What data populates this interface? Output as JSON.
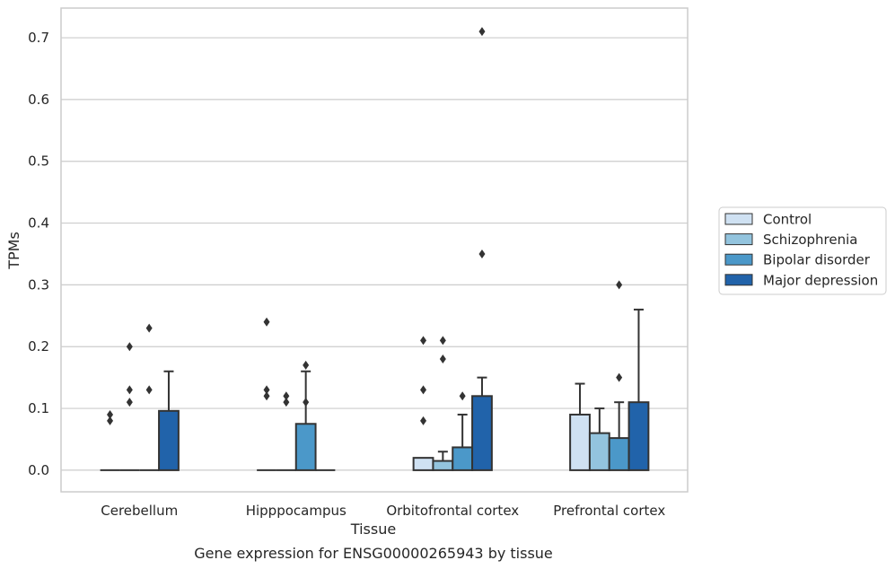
{
  "caption": "Gene expression for ENSG00000265943 by tissue",
  "chart_data": {
    "type": "bar",
    "xlabel": "Tissue",
    "ylabel": "TPMs",
    "ylim": [
      -0.035,
      0.748
    ],
    "yticks": [
      "0.0",
      "0.1",
      "0.2",
      "0.3",
      "0.4",
      "0.5",
      "0.6",
      "0.7"
    ],
    "grid": true,
    "legend_position": "right",
    "categories": [
      "Cerebellum",
      "Hipppocampus",
      "Orbitofrontal cortex",
      "Prefrontal cortex"
    ],
    "series": [
      {
        "name": "Control",
        "color": "#cfe1f2",
        "values": [
          0.0,
          0.0,
          0.02,
          0.09
        ],
        "error_upper": [
          0.0,
          0.0,
          0.0,
          0.14
        ],
        "outliers": [
          [
            0.08,
            0.09
          ],
          [
            0.12,
            0.13,
            0.24
          ],
          [
            0.08,
            0.13,
            0.21
          ],
          []
        ]
      },
      {
        "name": "Schizophrenia",
        "color": "#93c4de",
        "values": [
          0.0,
          0.0,
          0.015,
          0.06
        ],
        "error_upper": [
          0.0,
          0.0,
          0.03,
          0.1
        ],
        "outliers": [
          [
            0.11,
            0.13,
            0.2
          ],
          [
            0.11,
            0.12
          ],
          [
            0.18,
            0.21
          ],
          []
        ]
      },
      {
        "name": "Bipolar disorder",
        "color": "#4b98c9",
        "values": [
          0.0,
          0.075,
          0.037,
          0.052
        ],
        "error_upper": [
          0.0,
          0.16,
          0.09,
          0.11
        ],
        "outliers": [
          [
            0.13,
            0.23
          ],
          [
            0.11,
            0.17
          ],
          [
            0.12
          ],
          [
            0.15,
            0.3
          ]
        ]
      },
      {
        "name": "Major depression",
        "color": "#2163aa",
        "values": [
          0.096,
          0.0,
          0.12,
          0.11
        ],
        "error_upper": [
          0.16,
          0.0,
          0.15,
          0.26
        ],
        "outliers": [
          [],
          [],
          [
            0.35,
            0.71
          ],
          []
        ]
      }
    ]
  }
}
